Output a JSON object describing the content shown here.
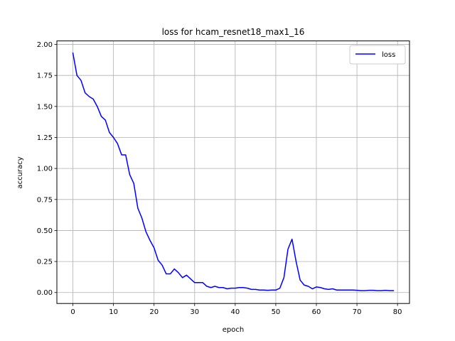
{
  "chart_data": {
    "type": "line",
    "title": "loss for hcam_resnet18_max1_16",
    "xlabel": "epoch",
    "ylabel": "accuracy",
    "xlim": [
      -3.95,
      82.95
    ],
    "ylim": [
      -0.0885,
      2.0283
    ],
    "xticks": [
      0,
      10,
      20,
      30,
      40,
      50,
      60,
      70,
      80
    ],
    "yticks": [
      "0.00",
      "0.25",
      "0.50",
      "0.75",
      "1.00",
      "1.25",
      "1.50",
      "1.75",
      "2.00"
    ],
    "grid": true,
    "legend_position": "upper right",
    "series": [
      {
        "name": "loss",
        "color": "#0000ff",
        "x": [
          0,
          1,
          2,
          3,
          4,
          5,
          6,
          7,
          8,
          9,
          10,
          11,
          12,
          13,
          14,
          15,
          16,
          17,
          18,
          19,
          20,
          21,
          22,
          23,
          24,
          25,
          26,
          27,
          28,
          29,
          30,
          31,
          32,
          33,
          34,
          35,
          36,
          37,
          38,
          39,
          40,
          41,
          42,
          43,
          44,
          45,
          46,
          47,
          48,
          49,
          50,
          51,
          52,
          53,
          54,
          55,
          56,
          57,
          58,
          59,
          60,
          61,
          62,
          63,
          64,
          65,
          66,
          67,
          68,
          69,
          70,
          71,
          72,
          73,
          74,
          75,
          76,
          77,
          78,
          79
        ],
        "values": [
          1.93,
          1.75,
          1.71,
          1.61,
          1.58,
          1.56,
          1.5,
          1.42,
          1.39,
          1.29,
          1.25,
          1.2,
          1.11,
          1.11,
          0.95,
          0.88,
          0.68,
          0.6,
          0.49,
          0.42,
          0.36,
          0.26,
          0.22,
          0.15,
          0.15,
          0.19,
          0.16,
          0.12,
          0.14,
          0.11,
          0.08,
          0.08,
          0.08,
          0.05,
          0.04,
          0.05,
          0.04,
          0.04,
          0.03,
          0.035,
          0.035,
          0.04,
          0.04,
          0.035,
          0.025,
          0.025,
          0.02,
          0.02,
          0.018,
          0.02,
          0.02,
          0.035,
          0.12,
          0.35,
          0.43,
          0.25,
          0.1,
          0.06,
          0.05,
          0.03,
          0.045,
          0.04,
          0.03,
          0.025,
          0.03,
          0.02,
          0.02,
          0.02,
          0.02,
          0.02,
          0.018,
          0.015,
          0.015,
          0.018,
          0.018,
          0.015,
          0.015,
          0.018,
          0.015,
          0.015
        ]
      }
    ]
  }
}
